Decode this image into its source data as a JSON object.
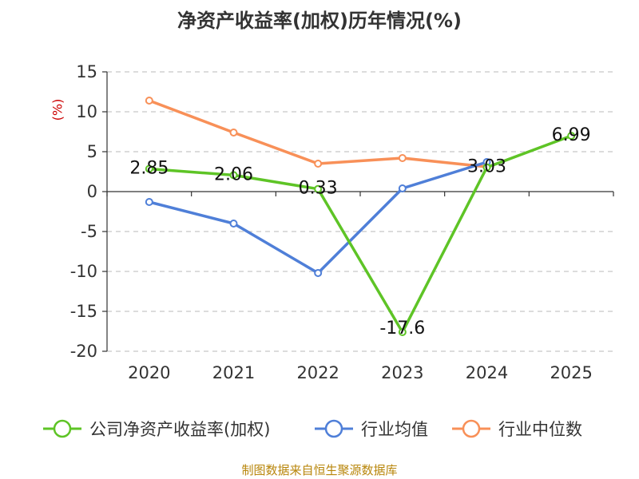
{
  "title": "净资产收益率(加权)历年情况(%)",
  "unit_label": "(%)",
  "source": "制图数据来自恒生聚源数据库",
  "chart_data": {
    "type": "line",
    "categories": [
      "2020",
      "2021",
      "2022",
      "2023",
      "2024",
      "2025"
    ],
    "ylim": [
      -20,
      15
    ],
    "yticks": [
      15,
      10,
      5,
      0,
      -5,
      -10,
      -15,
      -20
    ],
    "grid": true,
    "legend_position": "bottom",
    "series": [
      {
        "name": "公司净资产收益率(加权)",
        "color": "#5ec426",
        "values": [
          2.85,
          2.06,
          0.33,
          -17.6,
          3.03,
          6.99
        ],
        "labeled": true
      },
      {
        "name": "行业均值",
        "color": "#4f7fd8",
        "values": [
          -1.3,
          -4.0,
          -10.2,
          0.4,
          3.7,
          null
        ],
        "labeled": false
      },
      {
        "name": "行业中位数",
        "color": "#f89058",
        "values": [
          11.4,
          7.4,
          3.5,
          4.2,
          3.1,
          null
        ],
        "labeled": false
      }
    ]
  }
}
